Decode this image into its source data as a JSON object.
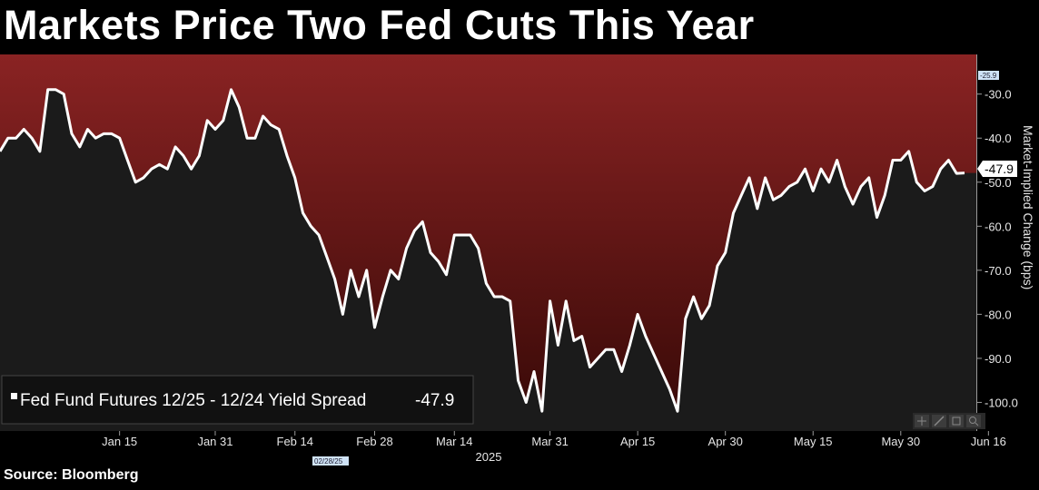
{
  "title": "Markets Price Two Fed Cuts This Year",
  "source": "Source: Bloomberg",
  "colors": {
    "background": "#1b1b1b",
    "band_top": "#8a2323",
    "band_bottom": "#3a0a08",
    "line": "#ffffff"
  },
  "toolbar_icons": [
    "crosshair-icon",
    "draw-icon",
    "save-icon",
    "zoom-icon"
  ],
  "chart_data": {
    "type": "line",
    "title": "Markets Price Two Fed Cuts This Year",
    "ylabel": "Market-Implied Change (bps)",
    "xlabel": "2025",
    "ylim": [
      -106.5,
      -21
    ],
    "y_ticks": [
      "-30.0",
      "-40.0",
      "-50.0",
      "-60.0",
      "-70.0",
      "-80.0",
      "-90.0",
      "-100.0"
    ],
    "y_tick_values": [
      -30,
      -40,
      -50,
      -60,
      -70,
      -80,
      -90,
      -100
    ],
    "x_ticks": [
      {
        "label": "Jan 15",
        "index": 15
      },
      {
        "label": "Jan 31",
        "index": 27
      },
      {
        "label": "Feb 14",
        "index": 37
      },
      {
        "label": "Feb 28",
        "index": 47
      },
      {
        "label": "Mar 14",
        "index": 57
      },
      {
        "label": "Mar 31",
        "index": 69
      },
      {
        "label": "Apr 15",
        "index": 80
      },
      {
        "label": "Apr 30",
        "index": 91
      },
      {
        "label": "May 15",
        "index": 102
      },
      {
        "label": "May 30",
        "index": 113
      },
      {
        "label": "Jun 16",
        "index": 124
      }
    ],
    "x_year_label": "2025",
    "crosshair_date": "02/28/25",
    "top_marker": "-25.9",
    "last_value_label": "-47.9",
    "series": [
      {
        "name": "Fed Fund Futures 12/25 - 12/24 Yield Spread",
        "legend_value": "-47.9",
        "values": [
          -43,
          -40,
          -40,
          -38,
          -40,
          -43,
          -29,
          -29,
          -30,
          -39,
          -42,
          -38,
          -40,
          -39,
          -39,
          -40,
          -45,
          -50,
          -49,
          -47,
          -46,
          -47,
          -42,
          -44,
          -47,
          -44,
          -36,
          -38,
          -36,
          -29,
          -33,
          -40,
          -40,
          -35,
          -37,
          -38,
          -44,
          -49,
          -57,
          -60,
          -62,
          -67,
          -72,
          -80,
          -70,
          -76,
          -70,
          -83,
          -76,
          -70,
          -72,
          -65,
          -61,
          -59,
          -66,
          -68,
          -71,
          -62,
          -62,
          -62,
          -65,
          -73,
          -76,
          -76,
          -77,
          -95,
          -100,
          -93,
          -102,
          -77,
          -87,
          -77,
          -86,
          -85,
          -92,
          -90,
          -88,
          -88,
          -93,
          -87,
          -80,
          -85,
          -89,
          -93,
          -97,
          -102,
          -81,
          -76,
          -81,
          -78,
          -69,
          -66,
          -57,
          -53,
          -49,
          -56,
          -49,
          -54,
          -53,
          -51,
          -50,
          -47,
          -52,
          -47,
          -50,
          -45,
          -51,
          -55,
          -51,
          -49,
          -58,
          -53,
          -45,
          -45,
          -43,
          -50,
          -52,
          -51,
          -47,
          -45,
          -48,
          -47.9
        ]
      }
    ],
    "grid": false,
    "legend_position": "bottom-left"
  }
}
